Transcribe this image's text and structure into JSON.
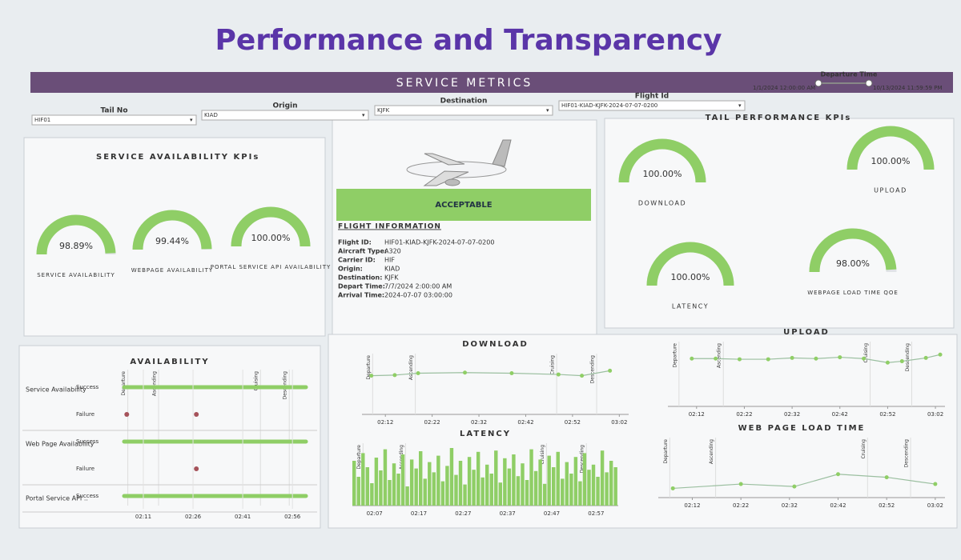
{
  "header": {
    "title": "Performance and Transparency",
    "banner": "SERVICE METRICS"
  },
  "filters": [
    {
      "label": "Tail No",
      "value": "HIF01"
    },
    {
      "label": "Origin",
      "value": "KIAD"
    },
    {
      "label": "Destination",
      "value": "KJFK"
    },
    {
      "label": "Flight Id",
      "value": "HIF01-KIAD-KJFK-2024-07-07-0200"
    }
  ],
  "departure_time": {
    "label": "Departure Time",
    "start": "1/1/2024 12:00:00 AM",
    "end": "10/13/2024 11:59:59 PM"
  },
  "service_kpis": {
    "title": "SERVICE AVAILABILITY KPIs",
    "gauges": [
      {
        "name": "SERVICE AVAILABILITY",
        "value": 98.89,
        "value_label": "98.89%"
      },
      {
        "name": "WEBPAGE AVAILABILITY",
        "value": 99.44,
        "value_label": "99.44%"
      },
      {
        "name": "PORTAL SERVICE API AVAILABILITY",
        "value": 100,
        "value_label": "100.00%"
      }
    ]
  },
  "flight": {
    "status": "ACCEPTABLE",
    "title": "FLIGHT INFORMATION",
    "fields": [
      [
        "Flight ID:",
        "HIF01-KIAD-KJFK-2024-07-07-0200"
      ],
      [
        "Aircraft Type:",
        "A320"
      ],
      [
        "Carrier ID:",
        "HIF"
      ],
      [
        "Origin:",
        "KIAD"
      ],
      [
        "Destination:",
        "KJFK"
      ],
      [
        "Depart Time:",
        "7/7/2024 2:00:00 AM"
      ],
      [
        "Arrival Time:",
        "2024-07-07 03:00:00"
      ]
    ]
  },
  "tail_kpis": {
    "title": "TAIL PERFORMANCE KPIs",
    "gauges": [
      {
        "name": "DOWNLOAD",
        "value": 100,
        "value_label": "100.00%"
      },
      {
        "name": "UPLOAD",
        "value": 100,
        "value_label": "100.00%"
      },
      {
        "name": "LATENCY",
        "value": 100,
        "value_label": "100.00%"
      },
      {
        "name": "WEBPAGE LOAD TIME QOE",
        "value": 98,
        "value_label": "98.00%"
      }
    ]
  },
  "phases": [
    "Departure",
    "Ascending",
    "Cruising",
    "Descending"
  ],
  "availability": {
    "title": "AVAILABILITY",
    "xlim": [
      "02:04",
      "03:02"
    ],
    "xticks": [
      "02:11",
      "02:26",
      "02:41",
      "02:56"
    ],
    "rows": [
      {
        "name": "Service Availability",
        "states": [
          "Success",
          "Failure"
        ],
        "failures": [
          "02:06",
          "02:27"
        ]
      },
      {
        "name": "Web Page Availability",
        "states": [
          "Success",
          "Failure"
        ],
        "failures": [
          "02:27"
        ]
      },
      {
        "name": "Portal Service API ..",
        "states": [
          "Success"
        ],
        "failures": []
      }
    ]
  },
  "charts": [
    {
      "type": "line",
      "title": "DOWNLOAD",
      "ylim": [
        0,
        100
      ],
      "xlim": [
        "02:07",
        "03:04"
      ],
      "xticks": [
        "02:12",
        "02:22",
        "02:32",
        "02:42",
        "02:52",
        "03:02"
      ],
      "x": [
        "02:09",
        "02:14",
        "02:19",
        "02:29",
        "02:39",
        "02:49",
        "02:54",
        "03:00"
      ],
      "values": [
        62,
        63,
        66,
        67,
        66,
        64,
        62,
        70
      ]
    },
    {
      "type": "line",
      "title": "UPLOAD",
      "ylim": [
        0,
        100
      ],
      "xlim": [
        "02:06",
        "03:04"
      ],
      "xticks": [
        "02:12",
        "02:22",
        "02:32",
        "02:42",
        "02:52",
        "03:02"
      ],
      "x": [
        "02:11",
        "02:16",
        "02:21",
        "02:27",
        "02:32",
        "02:37",
        "02:42",
        "02:47",
        "02:52",
        "02:55",
        "03:00",
        "03:03"
      ],
      "values": [
        72,
        72,
        71,
        71,
        73,
        72,
        74,
        72,
        66,
        68,
        73,
        78
      ]
    },
    {
      "type": "bar",
      "title": "LATENCY",
      "ylim": [
        0,
        100
      ],
      "xticks": [
        "02:07",
        "02:17",
        "02:27",
        "02:37",
        "02:47",
        "02:57"
      ],
      "values": [
        70,
        45,
        82,
        60,
        35,
        75,
        55,
        88,
        40,
        66,
        50,
        80,
        30,
        72,
        58,
        85,
        42,
        68,
        52,
        78,
        38,
        62,
        90,
        48,
        70,
        33,
        76,
        56,
        84,
        44,
        64,
        50,
        86,
        36,
        74,
        58,
        80,
        46,
        66,
        40,
        88,
        54,
        72,
        34,
        78,
        60,
        84,
        42,
        68,
        50,
        76,
        38,
        82,
        56,
        64,
        45,
        86,
        52,
        70,
        60
      ]
    },
    {
      "type": "line",
      "title": "WEB PAGE LOAD TIME",
      "ylim": [
        0,
        100
      ],
      "xlim": [
        "02:05",
        "03:04"
      ],
      "xticks": [
        "02:12",
        "02:22",
        "02:32",
        "02:42",
        "02:52",
        "03:02"
      ],
      "x": [
        "02:08",
        "02:22",
        "02:33",
        "02:42",
        "02:52",
        "03:02"
      ],
      "values": [
        15,
        22,
        18,
        38,
        33,
        22
      ]
    }
  ]
}
